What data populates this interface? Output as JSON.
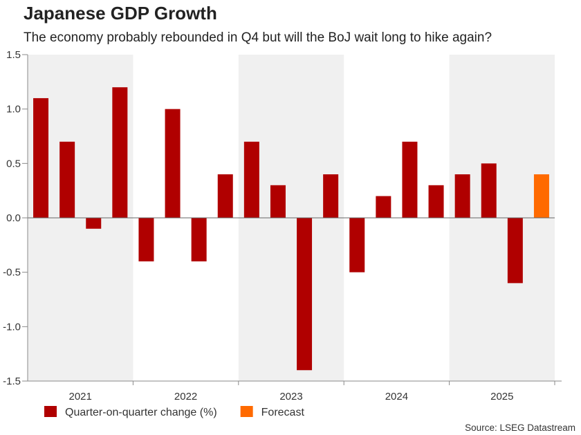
{
  "chart_data": {
    "type": "bar",
    "title": "Japanese GDP Growth",
    "subtitle": "The economy probably rebounded in Q4 but will the BoJ wait long to hike again?",
    "categories": [
      "2021 Q1",
      "2021 Q2",
      "2021 Q3",
      "2021 Q4",
      "2022 Q1",
      "2022 Q2",
      "2022 Q3",
      "2022 Q4",
      "2023 Q1",
      "2023 Q2",
      "2023 Q3",
      "2023 Q4",
      "2024 Q1",
      "2024 Q2",
      "2024 Q3",
      "2024 Q4",
      "2025 Q1",
      "2025 Q2",
      "2025 Q3",
      "2025 Q4"
    ],
    "year_labels": [
      "2021",
      "2022",
      "2023",
      "2024",
      "2025"
    ],
    "series": [
      {
        "name": "Quarter-on-quarter change (%)",
        "color": "#b00000",
        "values": [
          1.1,
          0.7,
          -0.1,
          1.2,
          -0.4,
          1.0,
          -0.4,
          0.4,
          0.7,
          0.3,
          -1.4,
          0.4,
          -0.5,
          0.2,
          0.7,
          0.3,
          0.4,
          0.5,
          -0.6,
          null
        ]
      },
      {
        "name": "Forecast",
        "color": "#ff6a00",
        "values": [
          null,
          null,
          null,
          null,
          null,
          null,
          null,
          null,
          null,
          null,
          null,
          null,
          null,
          null,
          null,
          null,
          null,
          null,
          null,
          0.4
        ]
      }
    ],
    "ylim": [
      -1.5,
      1.5
    ],
    "yticks": [
      "1.5",
      "1.0",
      "0.5",
      "0.0",
      "-0.5",
      "-1.0",
      "-1.5"
    ],
    "legend_position": "bottom-left",
    "source": "Source: LSEG Datastream"
  }
}
